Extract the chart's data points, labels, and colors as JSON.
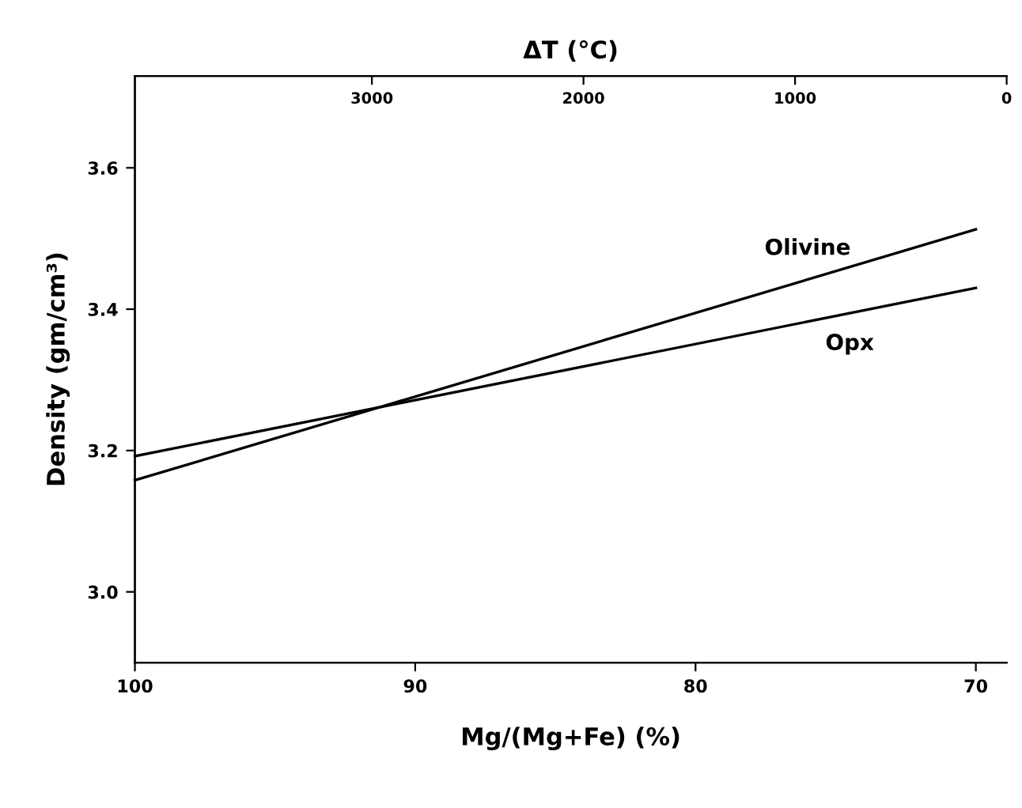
{
  "chart_data": {
    "type": "line",
    "xlabel": "Mg/(Mg+Fe) (%)",
    "ylabel": "Density (gm/cm³)",
    "x2label": "ΔT (°C)",
    "series": [
      {
        "name": "Olivine",
        "color": "#000000",
        "values": [
          3.158,
          3.513
        ]
      },
      {
        "name": "Opx",
        "color": "#000000",
        "values": [
          3.192,
          3.43
        ]
      }
    ],
    "x": [
      100,
      70
    ],
    "xlim": [
      100,
      68.9
    ],
    "xticks": [
      100,
      90,
      80,
      70
    ],
    "x2lim": [
      4120,
      0
    ],
    "x2ticks": [
      3000,
      2000,
      1000,
      0
    ],
    "ylim": [
      2.9,
      3.73
    ],
    "yticks": [
      {
        "value": 3.0,
        "label": "3.0"
      },
      {
        "value": 3.2,
        "label": "3.2"
      },
      {
        "value": 3.4,
        "label": "3.4"
      },
      {
        "value": 3.6,
        "label": "3.6"
      }
    ],
    "grid": false,
    "legend": false,
    "marker": "none",
    "line_style": "solid"
  }
}
